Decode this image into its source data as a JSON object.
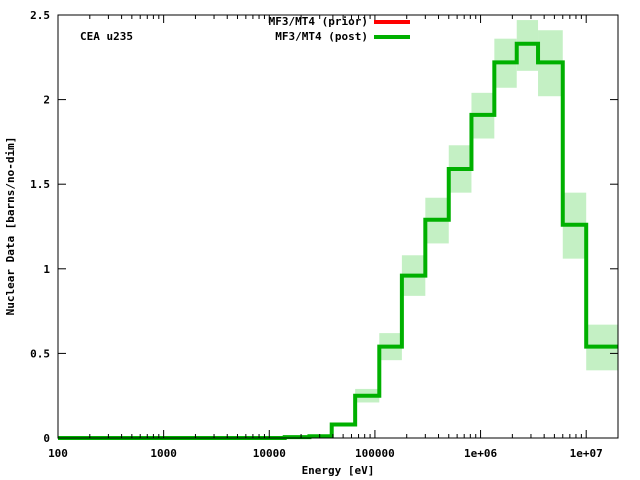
{
  "chart_data": {
    "type": "line",
    "step": true,
    "xscale": "log",
    "xlabel": "Energy [eV]",
    "ylabel": "Nuclear Data [barns/no-dim]",
    "xlim": [
      100,
      20000000
    ],
    "ylim": [
      0,
      2.5
    ],
    "x_ticks": [
      {
        "value": 100,
        "label": "100"
      },
      {
        "value": 1000,
        "label": "1000"
      },
      {
        "value": 10000,
        "label": "10000"
      },
      {
        "value": 100000,
        "label": "100000"
      },
      {
        "value": 1000000,
        "label": "1e+06"
      },
      {
        "value": 10000000,
        "label": "1e+07"
      }
    ],
    "y_ticks": [
      {
        "value": 0,
        "label": "0"
      },
      {
        "value": 0.5,
        "label": "0.5"
      },
      {
        "value": 1,
        "label": "1"
      },
      {
        "value": 1.5,
        "label": "1.5"
      },
      {
        "value": 2,
        "label": "2"
      },
      {
        "value": 2.5,
        "label": "2.5"
      }
    ],
    "annotation": "CEA u235",
    "legend_position": "top-center",
    "bin_edges": [
      100,
      14000,
      24000,
      39000,
      65000,
      110000,
      180000,
      300000,
      500000,
      820000,
      1350000,
      2200000,
      3500000,
      6000000,
      10000000,
      20000000
    ],
    "series": [
      {
        "name": "MF3/MT4 (prior)",
        "color": "#ff0000",
        "values": [
          0.0,
          0.005,
          0.01,
          0.08,
          0.25,
          0.54,
          0.96,
          1.29,
          1.59,
          1.91,
          2.22,
          2.33,
          2.22,
          1.26,
          0.54
        ]
      },
      {
        "name": "MF3/MT4 (post)",
        "color": "#00b000",
        "band_color": "#c4f0c4",
        "values": [
          0.0,
          0.005,
          0.01,
          0.08,
          0.25,
          0.54,
          0.96,
          1.29,
          1.59,
          1.91,
          2.22,
          2.33,
          2.22,
          1.26,
          0.54
        ],
        "band_lower": [
          0.0,
          0.005,
          0.01,
          0.07,
          0.21,
          0.46,
          0.84,
          1.15,
          1.45,
          1.77,
          2.07,
          2.17,
          2.02,
          1.06,
          0.4
        ],
        "band_upper": [
          0.0,
          0.005,
          0.01,
          0.09,
          0.29,
          0.62,
          1.08,
          1.42,
          1.73,
          2.04,
          2.36,
          2.47,
          2.41,
          1.45,
          0.67
        ]
      }
    ]
  }
}
